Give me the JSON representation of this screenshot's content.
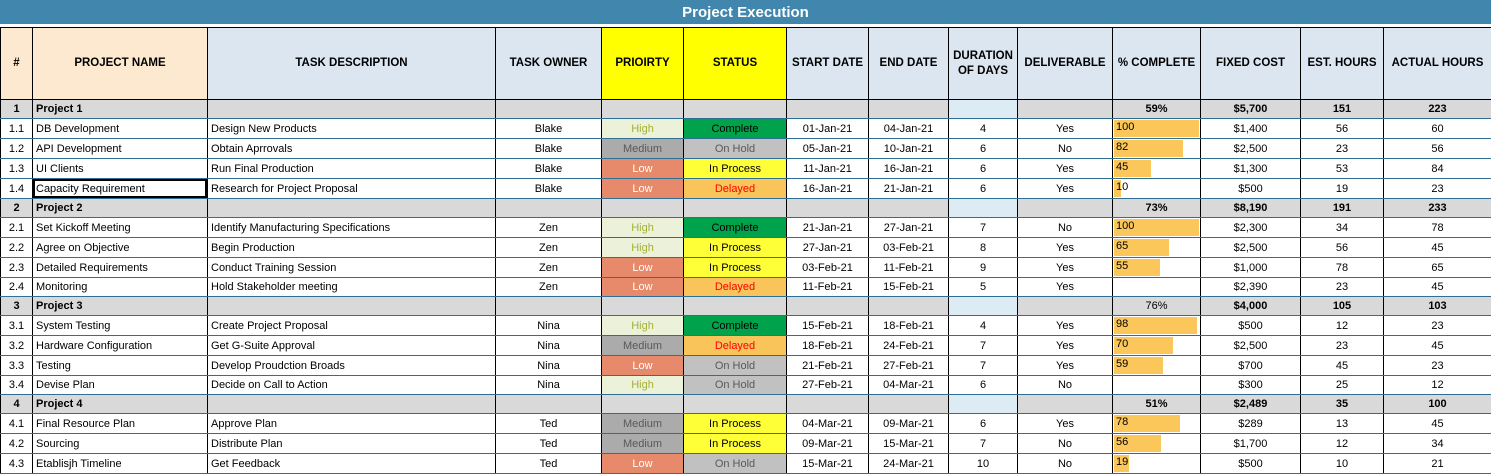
{
  "title": "Project Execution",
  "columns": [
    {
      "label": "#",
      "bg": "peach"
    },
    {
      "label": "PROJECT NAME",
      "bg": "peach"
    },
    {
      "label": "TASK DESCRIPTION",
      "bg": "blue"
    },
    {
      "label": "TASK OWNER",
      "bg": "blue"
    },
    {
      "label": "PRIOIRTY",
      "bg": "yellow"
    },
    {
      "label": "STATUS",
      "bg": "yellow"
    },
    {
      "label": "START DATE",
      "bg": "blue"
    },
    {
      "label": "END DATE",
      "bg": "blue"
    },
    {
      "label": "DURATION OF DAYS",
      "bg": "blue"
    },
    {
      "label": "DELIVERABLE",
      "bg": "blue"
    },
    {
      "label": "% COMPLETE",
      "bg": "blue"
    },
    {
      "label": "FIXED COST",
      "bg": "blue"
    },
    {
      "label": "EST. HOURS",
      "bg": "blue"
    },
    {
      "label": "ACTUAL HOURS",
      "bg": "blue"
    }
  ],
  "colors": {
    "title_bar": "#4187ad",
    "header_peach": "#fde9d0",
    "header_blue": "#dce6f1",
    "header_yellow": "#ffff00",
    "summary_row": "#d9d9d9",
    "summary_duration": "#ddebf5",
    "progress_bar": "#fbc75b",
    "grid_horizontal": "#2e6f93",
    "grid_vertical": "#000000"
  },
  "priority_styles": {
    "High": {
      "bg": "#ecf1d9",
      "text": "#a3b23a"
    },
    "Medium": {
      "bg": "#ababab",
      "text": "#595959"
    },
    "Low": {
      "bg": "#e78a6c",
      "text": "#ffffff"
    }
  },
  "status_styles": {
    "Complete": {
      "bg": "#00a24c",
      "text": "#000000"
    },
    "On Hold": {
      "bg": "#c1c1c1",
      "text": "#595959"
    },
    "In Process": {
      "bg": "#ffff38",
      "text": "#000000"
    },
    "Delayed": {
      "bg": "#f9c45a",
      "text": "#fe0000"
    }
  },
  "sections": [
    {
      "num": "1",
      "name": "Project 1",
      "summary": {
        "pct_complete": "59%",
        "pct_bold": true,
        "fixed_cost": "$5,700",
        "est_hours": "151",
        "actual_hours": "223"
      },
      "tasks": [
        {
          "id": "1.1",
          "name": "DB Development",
          "desc": "Design New Products",
          "owner": "Blake",
          "priority": "High",
          "status": "Complete",
          "start": "01-Jan-21",
          "end": "04-Jan-21",
          "duration": "4",
          "deliverable": "Yes",
          "pct": 100,
          "cost": "$1,400",
          "est": "56",
          "actual": "60"
        },
        {
          "id": "1.2",
          "name": "API Development",
          "desc": "Obtain Aprrovals",
          "owner": "Blake",
          "priority": "Medium",
          "status": "On Hold",
          "start": "05-Jan-21",
          "end": "10-Jan-21",
          "duration": "6",
          "deliverable": "No",
          "pct": 82,
          "cost": "$2,500",
          "est": "23",
          "actual": "56"
        },
        {
          "id": "1.3",
          "name": "UI Clients",
          "desc": "Run Final Production",
          "owner": "Blake",
          "priority": "Low",
          "status": "In Process",
          "start": "11-Jan-21",
          "end": "16-Jan-21",
          "duration": "6",
          "deliverable": "Yes",
          "pct": 45,
          "cost": "$1,300",
          "est": "53",
          "actual": "84"
        },
        {
          "id": "1.4",
          "name": "Capacity Requirement",
          "desc": "Research for Project Proposal",
          "owner": "Blake",
          "priority": "Low",
          "status": "Delayed",
          "start": "16-Jan-21",
          "end": "21-Jan-21",
          "duration": "6",
          "deliverable": "Yes",
          "pct": 10,
          "cost": "$500",
          "est": "19",
          "actual": "23",
          "selected": true
        }
      ]
    },
    {
      "num": "2",
      "name": "Project 2",
      "summary": {
        "pct_complete": "73%",
        "pct_bold": true,
        "fixed_cost": "$8,190",
        "est_hours": "191",
        "actual_hours": "233"
      },
      "tasks": [
        {
          "id": "2.1",
          "name": "Set Kickoff Meeting",
          "desc": "Identify Manufacturing Specifications",
          "owner": "Zen",
          "priority": "High",
          "status": "Complete",
          "start": "21-Jan-21",
          "end": "27-Jan-21",
          "duration": "7",
          "deliverable": "No",
          "pct": 100,
          "cost": "$2,300",
          "est": "34",
          "actual": "78"
        },
        {
          "id": "2.2",
          "name": "Agree on Objective",
          "desc": "Begin Production",
          "owner": "Zen",
          "priority": "High",
          "status": "In Process",
          "start": "27-Jan-21",
          "end": "03-Feb-21",
          "duration": "8",
          "deliverable": "Yes",
          "pct": 65,
          "cost": "$2,500",
          "est": "56",
          "actual": "45"
        },
        {
          "id": "2.3",
          "name": "Detailed Requirements",
          "desc": "Conduct Training Session",
          "owner": "Zen",
          "priority": "Low",
          "status": "In Process",
          "start": "03-Feb-21",
          "end": "11-Feb-21",
          "duration": "9",
          "deliverable": "Yes",
          "pct": 55,
          "cost": "$1,000",
          "est": "78",
          "actual": "65"
        },
        {
          "id": "2.4",
          "name": "Monitoring",
          "desc": "Hold Stakeholder meeting",
          "owner": "Zen",
          "priority": "Low",
          "status": "Delayed",
          "start": "11-Feb-21",
          "end": "15-Feb-21",
          "duration": "5",
          "deliverable": "Yes",
          "pct": null,
          "cost": "$2,390",
          "est": "23",
          "actual": "45"
        }
      ]
    },
    {
      "num": "3",
      "name": "Project 3",
      "summary": {
        "pct_complete": "76%",
        "pct_bold": false,
        "fixed_cost": "$4,000",
        "est_hours": "105",
        "actual_hours": "103"
      },
      "tasks": [
        {
          "id": "3.1",
          "name": "System Testing",
          "desc": "Create Project Proposal",
          "owner": "Nina",
          "priority": "High",
          "status": "Complete",
          "start": "15-Feb-21",
          "end": "18-Feb-21",
          "duration": "4",
          "deliverable": "Yes",
          "pct": 98,
          "cost": "$500",
          "est": "12",
          "actual": "23"
        },
        {
          "id": "3.2",
          "name": "Hardware Configuration",
          "desc": "Get G-Suite Approval",
          "owner": "Nina",
          "priority": "Medium",
          "status": "Delayed",
          "start": "18-Feb-21",
          "end": "24-Feb-21",
          "duration": "7",
          "deliverable": "Yes",
          "pct": 70,
          "cost": "$2,500",
          "est": "23",
          "actual": "45"
        },
        {
          "id": "3.3",
          "name": "Testing",
          "desc": "Develop Proudction Broads",
          "owner": "Nina",
          "priority": "Low",
          "status": "On Hold",
          "start": "21-Feb-21",
          "end": "27-Feb-21",
          "duration": "7",
          "deliverable": "Yes",
          "pct": 59,
          "cost": "$700",
          "est": "45",
          "actual": "23"
        },
        {
          "id": "3.4",
          "name": "Devise Plan",
          "desc": "Decide on Call to Action",
          "owner": "Nina",
          "priority": "High",
          "status": "On Hold",
          "start": "27-Feb-21",
          "end": "04-Mar-21",
          "duration": "6",
          "deliverable": "No",
          "pct": null,
          "cost": "$300",
          "est": "25",
          "actual": "12"
        }
      ]
    },
    {
      "num": "4",
      "name": "Project 4",
      "summary": {
        "pct_complete": "51%",
        "pct_bold": true,
        "fixed_cost": "$2,489",
        "est_hours": "35",
        "actual_hours": "100"
      },
      "tasks": [
        {
          "id": "4.1",
          "name": "Final Resource Plan",
          "desc": "Approve Plan",
          "owner": "Ted",
          "priority": "Medium",
          "status": "In Process",
          "start": "04-Mar-21",
          "end": "09-Mar-21",
          "duration": "6",
          "deliverable": "Yes",
          "pct": 78,
          "cost": "$289",
          "est": "13",
          "actual": "45"
        },
        {
          "id": "4.2",
          "name": "Sourcing",
          "desc": "Distribute Plan",
          "owner": "Ted",
          "priority": "Medium",
          "status": "In Process",
          "start": "09-Mar-21",
          "end": "15-Mar-21",
          "duration": "7",
          "deliverable": "No",
          "pct": 56,
          "cost": "$1,700",
          "est": "12",
          "actual": "34"
        },
        {
          "id": "4.3",
          "name": "Etablisjh Timeline",
          "desc": "Get Feedback",
          "owner": "Ted",
          "priority": "Low",
          "status": "On Hold",
          "start": "15-Mar-21",
          "end": "24-Mar-21",
          "duration": "10",
          "deliverable": "No",
          "pct": 19,
          "cost": "$500",
          "est": "10",
          "actual": "21"
        }
      ]
    }
  ]
}
